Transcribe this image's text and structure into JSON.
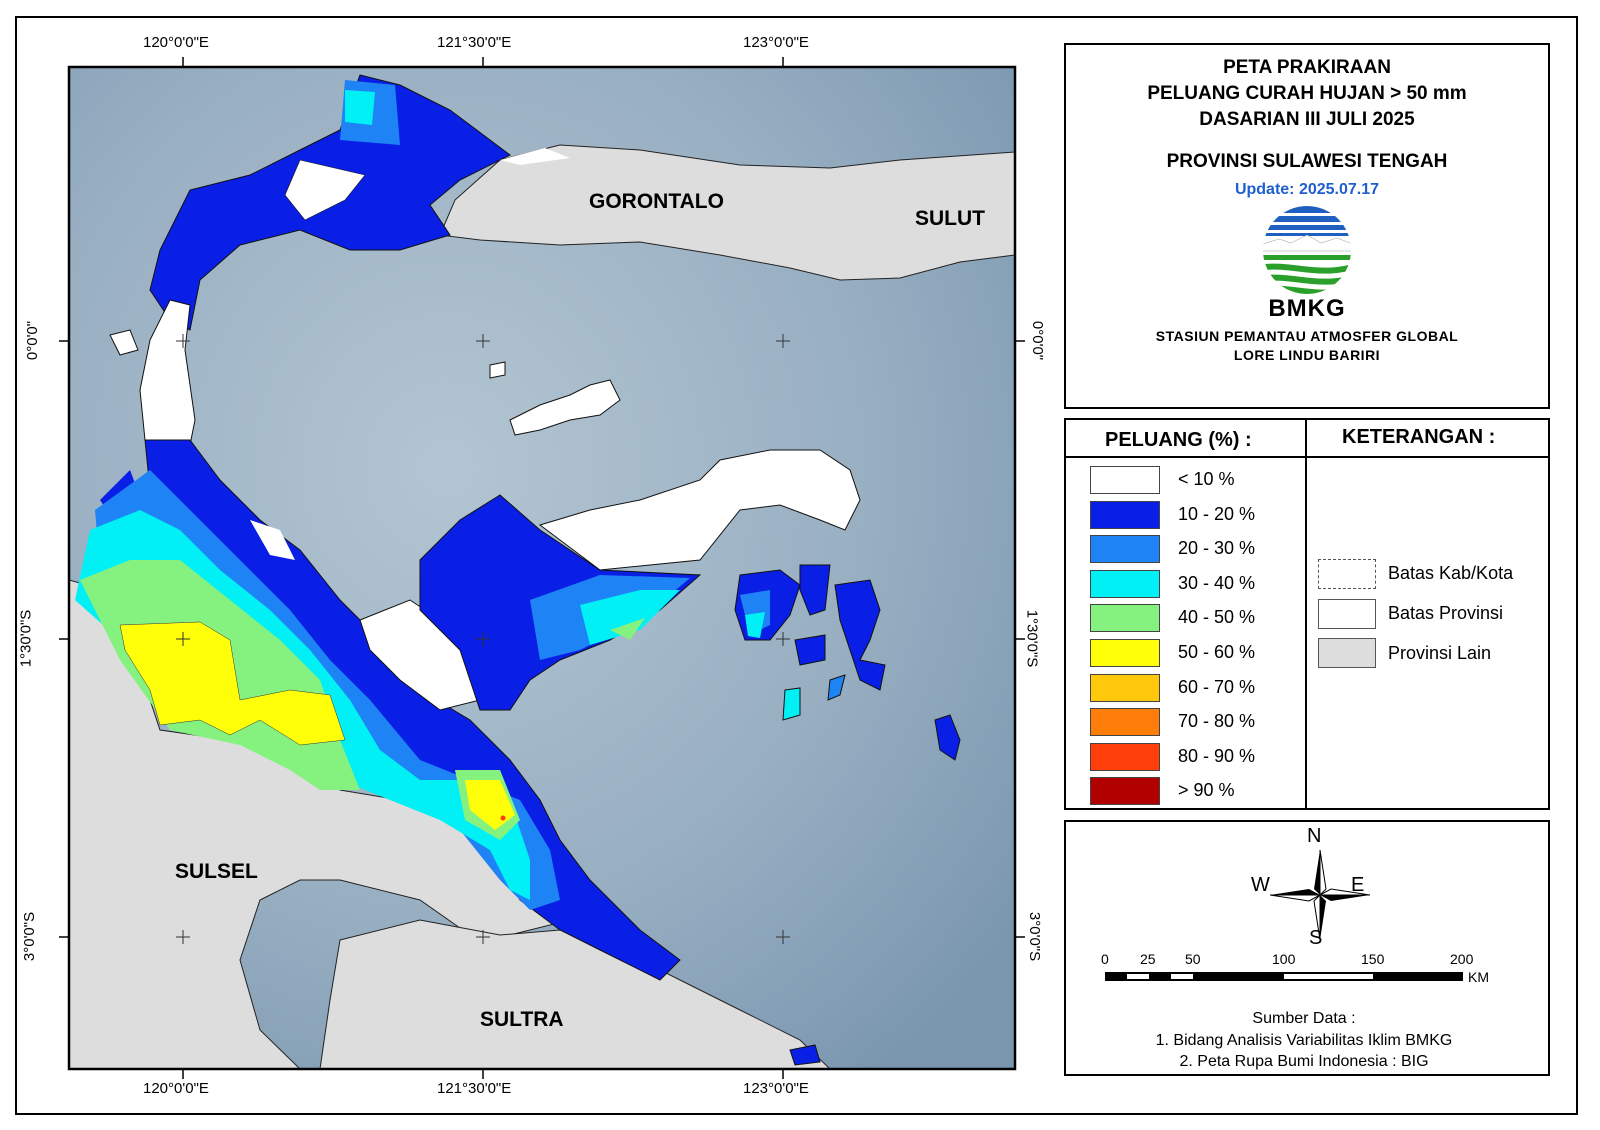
{
  "title": {
    "line1": "PETA PRAKIRAAN",
    "line2": "PELUANG CURAH HUJAN > 50 mm",
    "line3": "DASARIAN III JULI 2025",
    "province": "PROVINSI SULAWESI TENGAH",
    "update": "Update: 2025.07.17"
  },
  "agency": {
    "logo_name": "BMKG",
    "station_line1": "STASIUN PEMANTAU ATMOSFER GLOBAL",
    "station_line2": "LORE LINDU BARIRI"
  },
  "coords": {
    "lon_120": "120°0'0\"E",
    "lon_1215": "121°30'0\"E",
    "lon_123": "123°0'0\"E",
    "lat_0": "0°0'0\"",
    "lat_15": "1°30'0\"S",
    "lat_3": "3°0'0\"S"
  },
  "regions": {
    "gorontalo": "GORONTALO",
    "sulut": "SULUT",
    "sulsel": "SULSEL",
    "sultra": "SULTRA"
  },
  "legend": {
    "title": "PELUANG (%) :",
    "items": [
      {
        "label": "< 10 %",
        "color": "#ffffff"
      },
      {
        "label": "10 - 20 %",
        "color": "#0a1fe6"
      },
      {
        "label": "20 - 30 %",
        "color": "#1e84f5"
      },
      {
        "label": "30 - 40 %",
        "color": "#00f0f5"
      },
      {
        "label": "40 - 50 %",
        "color": "#85f27f"
      },
      {
        "label": "50 - 60 %",
        "color": "#ffff0a"
      },
      {
        "label": "60 - 70 %",
        "color": "#ffc80a"
      },
      {
        "label": "70 - 80 %",
        "color": "#ff7e0a"
      },
      {
        "label": "80 - 90 %",
        "color": "#ff3e0a"
      },
      {
        "label": "> 90 %",
        "color": "#b00000"
      }
    ]
  },
  "keterangan": {
    "title": "KETERANGAN :",
    "kab": "Batas Kab/Kota",
    "prov": "Batas Provinsi",
    "lain": "Provinsi Lain"
  },
  "compass": {
    "n": "N",
    "s": "S",
    "e": "E",
    "w": "W"
  },
  "scale": {
    "ticks": [
      "0",
      "25",
      "50",
      "100",
      "150",
      "200"
    ],
    "unit": "KM"
  },
  "source": {
    "title": "Sumber Data :",
    "line1": "1. Bidang Analisis Variabilitas Iklim BMKG",
    "line2": "2. Peta Rupa Bumi Indonesia : BIG"
  }
}
